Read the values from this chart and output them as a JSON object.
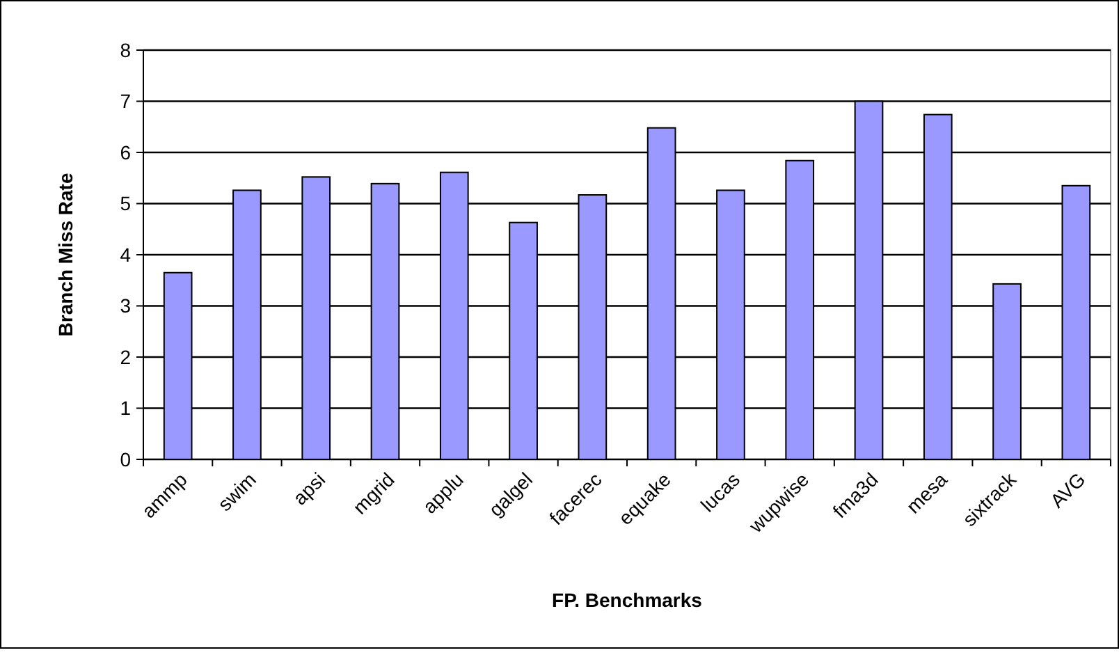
{
  "chart_data": {
    "type": "bar",
    "xlabel": "FP. Benchmarks",
    "ylabel": "Branch Miss Rate",
    "categories": [
      "ammp",
      "swim",
      "apsi",
      "mgrid",
      "applu",
      "galgel",
      "facerec",
      "equake",
      "lucas",
      "wupwise",
      "fma3d",
      "mesa",
      "sixtrack",
      "AVG"
    ],
    "values": [
      3.65,
      5.26,
      5.52,
      5.39,
      5.61,
      4.63,
      5.17,
      6.48,
      5.26,
      5.84,
      7.0,
      6.74,
      3.43,
      5.35
    ],
    "color": "#9999ff",
    "ylim": [
      0,
      8
    ],
    "yticks": [
      0,
      1,
      2,
      3,
      4,
      5,
      6,
      7,
      8
    ],
    "grid": "y"
  }
}
